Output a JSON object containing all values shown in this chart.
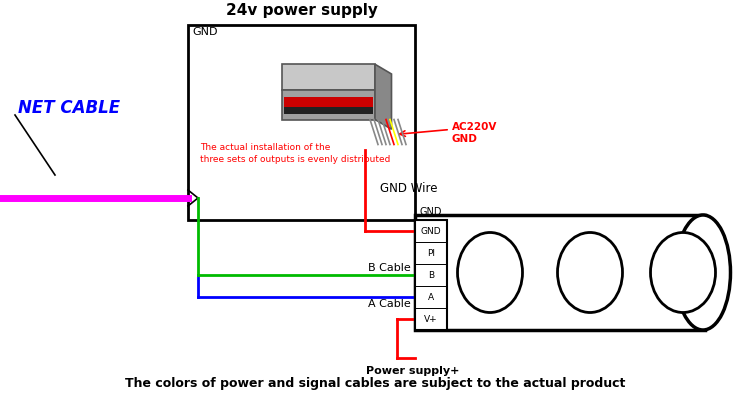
{
  "title": "24v power supply",
  "net_cable_label": "NET CABLE",
  "gnd_label_top": "GND",
  "gnd_wire_label": "GND Wire",
  "b_cable_label": "B Cable",
  "a_cable_label": "A Cable",
  "power_supply_plus_label": "Power supply+",
  "ac220v_label": "AC220V",
  "gnd_red_label": "GND",
  "bottom_note": "The colors of power and signal cables are subject to the actual product",
  "connector_labels": [
    "GND",
    "PI",
    "B",
    "A",
    "V+"
  ],
  "bg_color": "#ffffff",
  "box_color": "#000000",
  "magenta_cable_color": "#ff00ff",
  "green_cable_color": "#00bb00",
  "blue_cable_color": "#0000ff",
  "red_cable_color": "#ff0000",
  "net_cable_color": "#0000ff",
  "ac220v_color": "#ff0000",
  "red_note_color": "#ff0000",
  "note_line1": "The actual installation of the",
  "note_line2": "three sets of outputs is evenly distributed"
}
